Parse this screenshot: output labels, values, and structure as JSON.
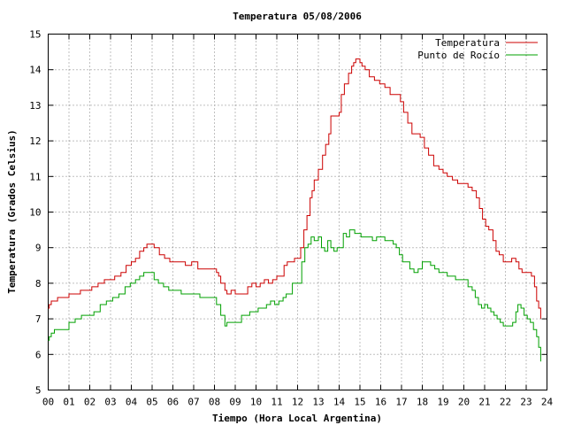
{
  "chart_data": {
    "type": "line",
    "title": "Temperatura 05/08/2006",
    "xlabel": "Tiempo (Hora Local Argentina)",
    "ylabel": "Temperatura (Grados Celsius)",
    "xlim": [
      0,
      24
    ],
    "ylim": [
      5,
      15
    ],
    "x_ticks": [
      "00",
      "01",
      "02",
      "03",
      "04",
      "05",
      "06",
      "07",
      "08",
      "09",
      "10",
      "11",
      "12",
      "13",
      "14",
      "15",
      "16",
      "17",
      "18",
      "19",
      "20",
      "21",
      "22",
      "23",
      "24"
    ],
    "y_ticks": [
      5,
      6,
      7,
      8,
      9,
      10,
      11,
      12,
      13,
      14,
      15
    ],
    "grid": true,
    "legend_position": "top-right",
    "series": [
      {
        "name": "Temperatura",
        "color": "#cc0000",
        "x": [
          0.0,
          0.05,
          0.15,
          0.3,
          0.45,
          0.7,
          1.0,
          1.3,
          1.55,
          1.8,
          2.1,
          2.4,
          2.7,
          3.0,
          3.2,
          3.5,
          3.75,
          4.0,
          4.2,
          4.4,
          4.6,
          4.75,
          4.9,
          5.1,
          5.35,
          5.6,
          5.85,
          6.1,
          6.35,
          6.6,
          6.9,
          7.2,
          7.5,
          7.8,
          8.0,
          8.1,
          8.2,
          8.3,
          8.5,
          8.6,
          8.8,
          9.0,
          9.2,
          9.4,
          9.6,
          9.8,
          10.0,
          10.2,
          10.4,
          10.6,
          10.8,
          11.0,
          11.2,
          11.35,
          11.5,
          11.65,
          11.85,
          12.0,
          12.15,
          12.3,
          12.45,
          12.6,
          12.7,
          12.8,
          13.0,
          13.2,
          13.35,
          13.5,
          13.6,
          13.8,
          14.0,
          14.1,
          14.25,
          14.45,
          14.6,
          14.7,
          14.8,
          14.9,
          15.0,
          15.1,
          15.25,
          15.45,
          15.7,
          15.95,
          16.2,
          16.45,
          16.7,
          16.95,
          17.1,
          17.3,
          17.5,
          17.7,
          17.9,
          18.1,
          18.3,
          18.55,
          18.8,
          19.0,
          19.2,
          19.45,
          19.7,
          19.95,
          20.2,
          20.4,
          20.6,
          20.75,
          20.9,
          21.05,
          21.2,
          21.4,
          21.55,
          21.7,
          21.9,
          22.1,
          22.3,
          22.5,
          22.65,
          22.8,
          22.95,
          23.1,
          23.25,
          23.4,
          23.5,
          23.6,
          23.7
        ],
        "values": [
          7.3,
          7.4,
          7.5,
          7.5,
          7.6,
          7.6,
          7.7,
          7.7,
          7.8,
          7.8,
          7.9,
          8.0,
          8.1,
          8.1,
          8.2,
          8.3,
          8.5,
          8.6,
          8.7,
          8.9,
          9.0,
          9.1,
          9.1,
          9.0,
          8.8,
          8.7,
          8.6,
          8.6,
          8.6,
          8.5,
          8.6,
          8.4,
          8.4,
          8.4,
          8.4,
          8.3,
          8.2,
          8.0,
          7.8,
          7.7,
          7.8,
          7.7,
          7.7,
          7.7,
          7.9,
          8.0,
          7.9,
          8.0,
          8.1,
          8.0,
          8.1,
          8.2,
          8.2,
          8.5,
          8.6,
          8.6,
          8.7,
          8.7,
          9.0,
          9.5,
          9.9,
          10.4,
          10.6,
          10.9,
          11.2,
          11.6,
          11.9,
          12.2,
          12.7,
          12.7,
          12.8,
          13.3,
          13.6,
          13.9,
          14.1,
          14.2,
          14.3,
          14.3,
          14.2,
          14.1,
          14.0,
          13.8,
          13.7,
          13.6,
          13.5,
          13.3,
          13.3,
          13.1,
          12.8,
          12.5,
          12.2,
          12.2,
          12.1,
          11.8,
          11.6,
          11.3,
          11.2,
          11.1,
          11.0,
          10.9,
          10.8,
          10.8,
          10.7,
          10.6,
          10.4,
          10.1,
          9.8,
          9.6,
          9.5,
          9.2,
          8.9,
          8.8,
          8.6,
          8.6,
          8.7,
          8.6,
          8.4,
          8.3,
          8.3,
          8.3,
          8.2,
          7.9,
          7.5,
          7.3,
          7.0
        ]
      },
      {
        "name": "Punto de Rocío",
        "color": "#00a000",
        "x": [
          0.0,
          0.05,
          0.15,
          0.3,
          0.5,
          0.75,
          1.0,
          1.3,
          1.6,
          1.9,
          2.2,
          2.5,
          2.8,
          3.1,
          3.4,
          3.7,
          3.95,
          4.2,
          4.4,
          4.6,
          4.75,
          4.9,
          5.1,
          5.3,
          5.55,
          5.8,
          6.1,
          6.4,
          6.7,
          7.0,
          7.3,
          7.6,
          7.9,
          8.1,
          8.3,
          8.5,
          8.6,
          8.75,
          8.9,
          9.1,
          9.3,
          9.5,
          9.7,
          9.9,
          10.1,
          10.3,
          10.5,
          10.7,
          10.9,
          11.1,
          11.3,
          11.45,
          11.6,
          11.75,
          11.9,
          12.05,
          12.2,
          12.35,
          12.5,
          12.65,
          12.8,
          13.0,
          13.15,
          13.3,
          13.45,
          13.6,
          13.75,
          13.9,
          14.05,
          14.2,
          14.35,
          14.5,
          14.6,
          14.75,
          14.9,
          15.05,
          15.2,
          15.4,
          15.6,
          15.8,
          16.0,
          16.2,
          16.4,
          16.6,
          16.75,
          16.9,
          17.05,
          17.2,
          17.4,
          17.6,
          17.8,
          18.0,
          18.2,
          18.4,
          18.6,
          18.8,
          19.0,
          19.2,
          19.4,
          19.6,
          19.8,
          20.0,
          20.2,
          20.4,
          20.55,
          20.7,
          20.85,
          21.0,
          21.15,
          21.3,
          21.45,
          21.6,
          21.75,
          21.9,
          22.05,
          22.2,
          22.35,
          22.5,
          22.6,
          22.75,
          22.9,
          23.05,
          23.2,
          23.35,
          23.5,
          23.6,
          23.7
        ],
        "values": [
          6.4,
          6.5,
          6.6,
          6.7,
          6.7,
          6.7,
          6.9,
          7.0,
          7.1,
          7.1,
          7.2,
          7.4,
          7.5,
          7.6,
          7.7,
          7.9,
          8.0,
          8.1,
          8.2,
          8.3,
          8.3,
          8.3,
          8.1,
          8.0,
          7.9,
          7.8,
          7.8,
          7.7,
          7.7,
          7.7,
          7.6,
          7.6,
          7.6,
          7.4,
          7.1,
          6.8,
          6.9,
          6.9,
          6.9,
          6.9,
          7.1,
          7.1,
          7.2,
          7.2,
          7.3,
          7.3,
          7.4,
          7.5,
          7.4,
          7.5,
          7.6,
          7.7,
          7.7,
          8.0,
          8.0,
          8.0,
          8.6,
          9.0,
          9.1,
          9.3,
          9.2,
          9.3,
          9.0,
          8.9,
          9.2,
          9.0,
          8.9,
          9.0,
          9.0,
          9.4,
          9.3,
          9.5,
          9.5,
          9.4,
          9.4,
          9.3,
          9.3,
          9.3,
          9.2,
          9.3,
          9.3,
          9.2,
          9.2,
          9.1,
          9.0,
          8.8,
          8.6,
          8.6,
          8.4,
          8.3,
          8.4,
          8.6,
          8.6,
          8.5,
          8.4,
          8.3,
          8.3,
          8.2,
          8.2,
          8.1,
          8.1,
          8.1,
          7.9,
          7.8,
          7.6,
          7.4,
          7.3,
          7.4,
          7.3,
          7.2,
          7.1,
          7.0,
          6.9,
          6.8,
          6.8,
          6.8,
          6.9,
          7.2,
          7.4,
          7.3,
          7.1,
          7.0,
          6.9,
          6.7,
          6.5,
          6.2,
          5.8
        ]
      }
    ]
  }
}
